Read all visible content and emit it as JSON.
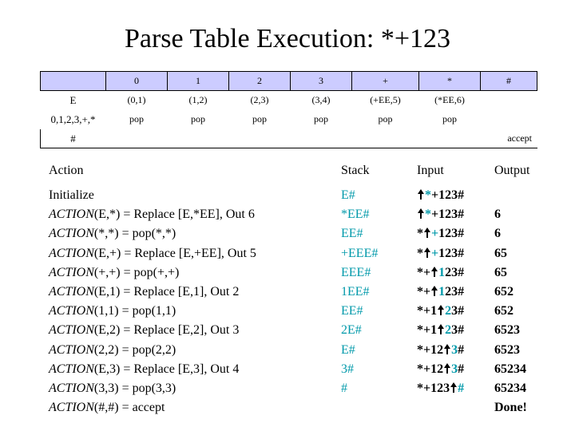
{
  "title": "Parse Table Execution: *+123",
  "table": {
    "columns": [
      "0",
      "1",
      "2",
      "3",
      "+",
      "*",
      "#"
    ],
    "rows": [
      {
        "label": "E",
        "cells": [
          "(0,1)",
          "(1,2)",
          "(2,3)",
          "(3,4)",
          "(+EE,5)",
          "(*EE,6)",
          ""
        ]
      },
      {
        "label": "0,1,2,3,+,*",
        "cells": [
          "pop",
          "pop",
          "pop",
          "pop",
          "pop",
          "pop",
          ""
        ]
      },
      {
        "label": "#",
        "cells": [
          "",
          "",
          "",
          "",
          "",
          "",
          "accept"
        ]
      }
    ]
  },
  "headers": {
    "action": "Action",
    "stack": "Stack",
    "input": "Input",
    "output": "Output"
  },
  "steps": [
    {
      "action_fn": "",
      "action_rest": "Initialize",
      "stack": "E#",
      "input_pre": "",
      "input_hl": "*",
      "input_post": "+123#",
      "output": ""
    },
    {
      "action_fn": "ACTION",
      "action_rest": "(E,*) = Replace [E,*EE], Out 6",
      "stack": "*EE#",
      "input_pre": "",
      "input_hl": "*",
      "input_post": "+123#",
      "output": "6"
    },
    {
      "action_fn": "ACTION",
      "action_rest": "(*,*) = pop(*,*)",
      "stack": "EE#",
      "input_pre": "*",
      "input_hl": "+",
      "input_post": "123#",
      "output": "6"
    },
    {
      "action_fn": "ACTION",
      "action_rest": "(E,+) = Replace [E,+EE], Out 5",
      "stack": "+EEE#",
      "input_pre": "*",
      "input_hl": "+",
      "input_post": "123#",
      "output": "65"
    },
    {
      "action_fn": "ACTION",
      "action_rest": "(+,+) = pop(+,+)",
      "stack": "EEE#",
      "input_pre": "*+",
      "input_hl": "1",
      "input_post": "23#",
      "output": "65"
    },
    {
      "action_fn": "ACTION",
      "action_rest": "(E,1) = Replace [E,1], Out 2",
      "stack": "1EE#",
      "input_pre": "*+",
      "input_hl": "1",
      "input_post": "23#",
      "output": "652"
    },
    {
      "action_fn": "ACTION",
      "action_rest": "(1,1) = pop(1,1)",
      "stack": "EE#",
      "input_pre": "*+1",
      "input_hl": "2",
      "input_post": "3#",
      "output": "652"
    },
    {
      "action_fn": "ACTION",
      "action_rest": "(E,2) = Replace [E,2], Out 3",
      "stack": "2E#",
      "input_pre": "*+1",
      "input_hl": "2",
      "input_post": "3#",
      "output": "6523"
    },
    {
      "action_fn": "ACTION",
      "action_rest": "(2,2) = pop(2,2)",
      "stack": "E#",
      "input_pre": "*+12",
      "input_hl": "3",
      "input_post": "#",
      "output": "6523"
    },
    {
      "action_fn": "ACTION",
      "action_rest": "(E,3) = Replace [E,3], Out 4",
      "stack": "3#",
      "input_pre": "*+12",
      "input_hl": "3",
      "input_post": "#",
      "output": "65234"
    },
    {
      "action_fn": "ACTION",
      "action_rest": "(3,3) = pop(3,3)",
      "stack": "#",
      "input_pre": "*+123",
      "input_hl": "#",
      "input_post": "",
      "output": "65234"
    },
    {
      "action_fn": "ACTION",
      "action_rest": "(#,#) = accept",
      "stack": "",
      "input_pre": "",
      "input_hl": "",
      "input_post": "",
      "output": "Done!"
    }
  ],
  "colors": {
    "header_fill": "#ccccff",
    "highlight": "#0099aa",
    "pointer": "#000000"
  }
}
